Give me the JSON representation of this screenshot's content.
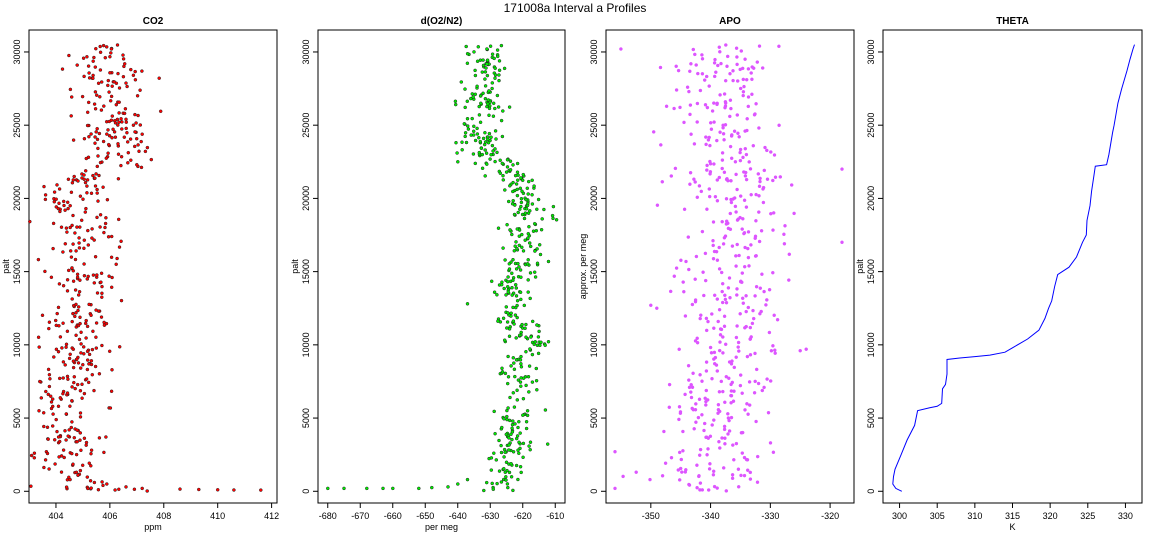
{
  "title": "171008a   Interval a Profiles",
  "chart_data": [
    {
      "type": "scatter",
      "title": "CO2",
      "xlabel": "ppm",
      "ylabel": "palt",
      "xlim": [
        403,
        412.2
      ],
      "ylim": [
        -800,
        31500
      ],
      "xticks": [
        404,
        406,
        408,
        410,
        412
      ],
      "yticks": [
        0,
        5000,
        10000,
        15000,
        20000,
        25000,
        30000
      ],
      "color": "#ff0000",
      "profile": [
        [
          0,
          405.6
        ],
        [
          600,
          405.2
        ],
        [
          1000,
          404.6
        ],
        [
          2000,
          404.2
        ],
        [
          3000,
          404.4
        ],
        [
          4000,
          404.3
        ],
        [
          5000,
          404.5
        ],
        [
          6000,
          404.4
        ],
        [
          7000,
          404.3
        ],
        [
          8000,
          404.5
        ],
        [
          9000,
          404.8
        ],
        [
          10000,
          405.0
        ],
        [
          11000,
          404.9
        ],
        [
          12000,
          404.7
        ],
        [
          13000,
          405.0
        ],
        [
          14000,
          404.9
        ],
        [
          15000,
          405.2
        ],
        [
          16000,
          405.0
        ],
        [
          17000,
          405.2
        ],
        [
          18000,
          404.9
        ],
        [
          19000,
          405.0
        ],
        [
          20000,
          404.6
        ],
        [
          21000,
          404.8
        ],
        [
          21800,
          405.4
        ],
        [
          22500,
          406.1
        ],
        [
          23500,
          406.2
        ],
        [
          24500,
          406.3
        ],
        [
          25500,
          406.1
        ],
        [
          26500,
          406.0
        ],
        [
          27500,
          406.0
        ],
        [
          28500,
          405.9
        ],
        [
          29500,
          406.0
        ],
        [
          30500,
          405.9
        ]
      ],
      "spread": 1.2,
      "outliers": [
        [
          300,
          406.6
        ],
        [
          200,
          407.2
        ],
        [
          150,
          408.6
        ],
        [
          120,
          409.3
        ],
        [
          100,
          410.0
        ],
        [
          90,
          410.6
        ],
        [
          80,
          411.6
        ],
        [
          22300,
          407.0
        ],
        [
          2600,
          403.2
        ],
        [
          7500,
          403.4
        ]
      ]
    },
    {
      "type": "scatter",
      "title": "d(O2/N2)",
      "xlabel": "per meg",
      "ylabel": "palt",
      "xlim": [
        -683,
        -607
      ],
      "ylim": [
        -800,
        31500
      ],
      "xticks": [
        -680,
        -670,
        -660,
        -650,
        -640,
        -630,
        -620,
        -610
      ],
      "yticks": [
        0,
        5000,
        10000,
        15000,
        20000,
        25000,
        30000
      ],
      "color": "#00ee00",
      "profile": [
        [
          0,
          -626
        ],
        [
          600,
          -626
        ],
        [
          1500,
          -626
        ],
        [
          3000,
          -622
        ],
        [
          4000,
          -624
        ],
        [
          5000,
          -624
        ],
        [
          6000,
          -623
        ],
        [
          7000,
          -620
        ],
        [
          8000,
          -622
        ],
        [
          9000,
          -622
        ],
        [
          10000,
          -618
        ],
        [
          11000,
          -622
        ],
        [
          12000,
          -625
        ],
        [
          13000,
          -622
        ],
        [
          14000,
          -624
        ],
        [
          15000,
          -621
        ],
        [
          16000,
          -620
        ],
        [
          17000,
          -620
        ],
        [
          18000,
          -618
        ],
        [
          19000,
          -618
        ],
        [
          20000,
          -619
        ],
        [
          21000,
          -620
        ],
        [
          22000,
          -624
        ],
        [
          23000,
          -632
        ],
        [
          24000,
          -634
        ],
        [
          25000,
          -634
        ],
        [
          26000,
          -632
        ],
        [
          27000,
          -632
        ],
        [
          28000,
          -632
        ],
        [
          29000,
          -630
        ],
        [
          30000,
          -632
        ],
        [
          30500,
          -630
        ]
      ],
      "spread": 6,
      "outliers": [
        [
          200,
          -680
        ],
        [
          200,
          -675
        ],
        [
          200,
          -668
        ],
        [
          200,
          -663
        ],
        [
          200,
          -660
        ],
        [
          200,
          -652
        ],
        [
          250,
          -648
        ],
        [
          300,
          -643
        ],
        [
          500,
          -640
        ],
        [
          800,
          -637
        ],
        [
          12800,
          -637
        ],
        [
          22500,
          -640
        ]
      ]
    },
    {
      "type": "scatter",
      "title": "APO",
      "xlabel": "",
      "ylabel": "approx. per meg",
      "xlim": [
        -357.5,
        -316
      ],
      "ylim": [
        -800,
        31500
      ],
      "xticks": [
        -350,
        -340,
        -330,
        -320
      ],
      "yticks": [
        0,
        5000,
        10000,
        15000,
        20000,
        25000,
        30000
      ],
      "color": "#dd55ff",
      "profile": [
        [
          0,
          -340
        ],
        [
          2000,
          -340
        ],
        [
          4000,
          -339
        ],
        [
          6000,
          -338
        ],
        [
          8000,
          -339
        ],
        [
          10000,
          -336
        ],
        [
          12000,
          -339
        ],
        [
          14000,
          -337
        ],
        [
          16000,
          -336
        ],
        [
          18000,
          -336
        ],
        [
          20000,
          -336
        ],
        [
          22000,
          -337
        ],
        [
          24000,
          -338
        ],
        [
          26000,
          -338
        ],
        [
          28000,
          -339
        ],
        [
          30000,
          -338
        ],
        [
          30500,
          -338
        ]
      ],
      "spread": 8,
      "outliers": [
        [
          30200,
          -355
        ],
        [
          2700,
          -356
        ],
        [
          200,
          -356
        ],
        [
          12700,
          -350
        ],
        [
          12500,
          -349
        ],
        [
          22000,
          -318
        ],
        [
          17000,
          -318
        ],
        [
          9700,
          -324
        ],
        [
          9600,
          -325
        ]
      ]
    },
    {
      "type": "line",
      "title": "THETA",
      "xlabel": "K",
      "ylabel": "palt",
      "xlim": [
        297.8,
        332.2
      ],
      "ylim": [
        -800,
        31500
      ],
      "xticks": [
        300,
        305,
        310,
        315,
        320,
        325,
        330
      ],
      "yticks": [
        0,
        5000,
        10000,
        15000,
        20000,
        25000,
        30000
      ],
      "color": "#0000ff",
      "points": [
        [
          300.3,
          0
        ],
        [
          299.5,
          200
        ],
        [
          299.1,
          500
        ],
        [
          299.2,
          1000
        ],
        [
          299.4,
          1500
        ],
        [
          300.2,
          2500
        ],
        [
          301.0,
          3500
        ],
        [
          302.0,
          4500
        ],
        [
          302.4,
          5500
        ],
        [
          304.0,
          5700
        ],
        [
          305.0,
          5800
        ],
        [
          305.6,
          6000
        ],
        [
          305.7,
          7000
        ],
        [
          306.1,
          7300
        ],
        [
          306.3,
          8000
        ],
        [
          306.3,
          9000
        ],
        [
          308.0,
          9100
        ],
        [
          310.0,
          9200
        ],
        [
          312.0,
          9300
        ],
        [
          314.0,
          9500
        ],
        [
          315.0,
          9800
        ],
        [
          316.0,
          10100
        ],
        [
          317.0,
          10400
        ],
        [
          318.5,
          11000
        ],
        [
          319.3,
          11800
        ],
        [
          319.8,
          12500
        ],
        [
          320.2,
          13000
        ],
        [
          320.6,
          14000
        ],
        [
          321.0,
          14800
        ],
        [
          322.5,
          15300
        ],
        [
          323.5,
          16000
        ],
        [
          324.3,
          17000
        ],
        [
          324.8,
          17500
        ],
        [
          324.9,
          18500
        ],
        [
          325.3,
          19500
        ],
        [
          325.5,
          20500
        ],
        [
          325.8,
          21500
        ],
        [
          326.0,
          22200
        ],
        [
          327.5,
          22300
        ],
        [
          327.8,
          23000
        ],
        [
          328.3,
          24500
        ],
        [
          328.5,
          25000
        ],
        [
          329.0,
          26500
        ],
        [
          329.5,
          27500
        ],
        [
          330.2,
          28700
        ],
        [
          330.6,
          29500
        ],
        [
          331.0,
          30200
        ],
        [
          331.2,
          30500
        ]
      ]
    }
  ]
}
